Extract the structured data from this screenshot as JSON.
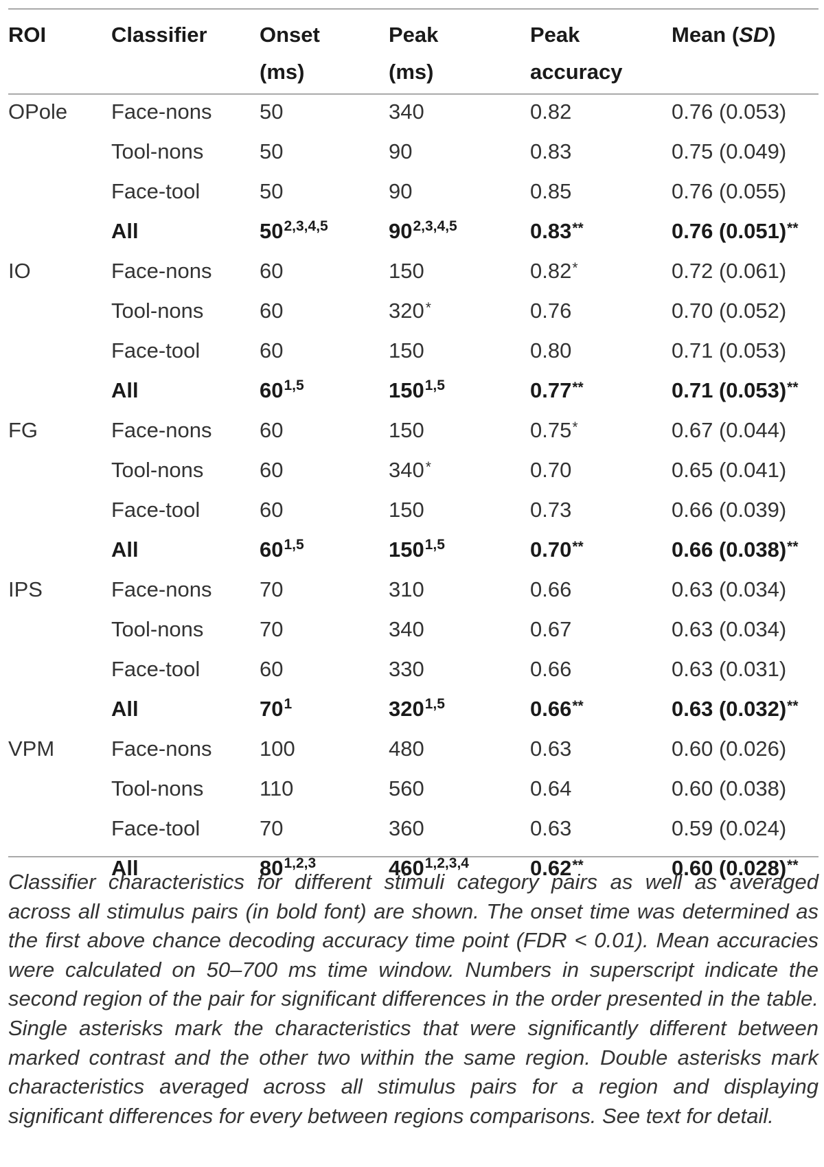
{
  "table": {
    "headers": [
      {
        "line1": "ROI",
        "line2": ""
      },
      {
        "line1": "Classifier",
        "line2": ""
      },
      {
        "line1": "Onset",
        "line2": "(ms)"
      },
      {
        "line1": "Peak",
        "line2": "(ms)"
      },
      {
        "line1": "Peak",
        "line2": "accuracy"
      },
      {
        "line1": "Mean (",
        "italic": "SD",
        "close": ")"
      }
    ],
    "rows": [
      {
        "roi": "OPole",
        "classifier": "Face-nons",
        "onset": "50",
        "onset_sup": "",
        "peak": "340",
        "peak_sup": "",
        "peak_mark": "",
        "acc": "0.82",
        "acc_mark": "",
        "mean": "0.76 (0.053)",
        "mean_mark": "",
        "all": false
      },
      {
        "roi": "",
        "classifier": "Tool-nons",
        "onset": "50",
        "onset_sup": "",
        "peak": "90",
        "peak_sup": "",
        "peak_mark": "",
        "acc": "0.83",
        "acc_mark": "",
        "mean": "0.75 (0.049)",
        "mean_mark": "",
        "all": false
      },
      {
        "roi": "",
        "classifier": "Face-tool",
        "onset": "50",
        "onset_sup": "",
        "peak": "90",
        "peak_sup": "",
        "peak_mark": "",
        "acc": "0.85",
        "acc_mark": "",
        "mean": "0.76 (0.055)",
        "mean_mark": "",
        "all": false
      },
      {
        "roi": "",
        "classifier": "All",
        "onset": "50",
        "onset_sup": "2,3,4,5",
        "peak": "90",
        "peak_sup": "2,3,4,5",
        "peak_mark": "",
        "acc": "0.83",
        "acc_mark": "**",
        "mean": "0.76 (0.051)",
        "mean_mark": "**",
        "all": true
      },
      {
        "roi": "IO",
        "classifier": "Face-nons",
        "onset": "60",
        "onset_sup": "",
        "peak": "150",
        "peak_sup": "",
        "peak_mark": "",
        "acc": "0.82",
        "acc_mark": "*",
        "mean": "0.72 (0.061)",
        "mean_mark": "",
        "all": false
      },
      {
        "roi": "",
        "classifier": "Tool-nons",
        "onset": "60",
        "onset_sup": "",
        "peak": "320",
        "peak_sup": "",
        "peak_mark": "*",
        "acc": "0.76",
        "acc_mark": "",
        "mean": "0.70 (0.052)",
        "mean_mark": "",
        "all": false
      },
      {
        "roi": "",
        "classifier": "Face-tool",
        "onset": "60",
        "onset_sup": "",
        "peak": "150",
        "peak_sup": "",
        "peak_mark": "",
        "acc": "0.80",
        "acc_mark": "",
        "mean": "0.71 (0.053)",
        "mean_mark": "",
        "all": false
      },
      {
        "roi": "",
        "classifier": "All",
        "onset": "60",
        "onset_sup": "1,5",
        "peak": "150",
        "peak_sup": "1,5",
        "peak_mark": "",
        "acc": "0.77",
        "acc_mark": "**",
        "mean": "0.71 (0.053)",
        "mean_mark": "**",
        "all": true
      },
      {
        "roi": "FG",
        "classifier": "Face-nons",
        "onset": "60",
        "onset_sup": "",
        "peak": "150",
        "peak_sup": "",
        "peak_mark": "",
        "acc": "0.75",
        "acc_mark": "*",
        "mean": "0.67 (0.044)",
        "mean_mark": "",
        "all": false
      },
      {
        "roi": "",
        "classifier": "Tool-nons",
        "onset": "60",
        "onset_sup": "",
        "peak": "340",
        "peak_sup": "",
        "peak_mark": "*",
        "acc": "0.70",
        "acc_mark": "",
        "mean": "0.65 (0.041)",
        "mean_mark": "",
        "all": false
      },
      {
        "roi": "",
        "classifier": "Face-tool",
        "onset": "60",
        "onset_sup": "",
        "peak": "150",
        "peak_sup": "",
        "peak_mark": "",
        "acc": "0.73",
        "acc_mark": "",
        "mean": "0.66 (0.039)",
        "mean_mark": "",
        "all": false
      },
      {
        "roi": "",
        "classifier": "All",
        "onset": "60",
        "onset_sup": "1,5",
        "peak": "150",
        "peak_sup": "1,5",
        "peak_mark": "",
        "acc": "0.70",
        "acc_mark": "**",
        "mean": "0.66 (0.038)",
        "mean_mark": "**",
        "all": true
      },
      {
        "roi": "IPS",
        "classifier": "Face-nons",
        "onset": "70",
        "onset_sup": "",
        "peak": "310",
        "peak_sup": "",
        "peak_mark": "",
        "acc": "0.66",
        "acc_mark": "",
        "mean": "0.63 (0.034)",
        "mean_mark": "",
        "all": false
      },
      {
        "roi": "",
        "classifier": "Tool-nons",
        "onset": "70",
        "onset_sup": "",
        "peak": "340",
        "peak_sup": "",
        "peak_mark": "",
        "acc": "0.67",
        "acc_mark": "",
        "mean": "0.63 (0.034)",
        "mean_mark": "",
        "all": false
      },
      {
        "roi": "",
        "classifier": "Face-tool",
        "onset": "60",
        "onset_sup": "",
        "peak": "330",
        "peak_sup": "",
        "peak_mark": "",
        "acc": "0.66",
        "acc_mark": "",
        "mean": "0.63 (0.031)",
        "mean_mark": "",
        "all": false
      },
      {
        "roi": "",
        "classifier": "All",
        "onset": "70",
        "onset_sup": "1",
        "peak": "320",
        "peak_sup": "1,5",
        "peak_mark": "",
        "acc": "0.66",
        "acc_mark": "**",
        "mean": "0.63 (0.032)",
        "mean_mark": "**",
        "all": true
      },
      {
        "roi": "VPM",
        "classifier": "Face-nons",
        "onset": "100",
        "onset_sup": "",
        "peak": "480",
        "peak_sup": "",
        "peak_mark": "",
        "acc": "0.63",
        "acc_mark": "",
        "mean": "0.60 (0.026)",
        "mean_mark": "",
        "all": false
      },
      {
        "roi": "",
        "classifier": "Tool-nons",
        "onset": "110",
        "onset_sup": "",
        "peak": "560",
        "peak_sup": "",
        "peak_mark": "",
        "acc": "0.64",
        "acc_mark": "",
        "mean": "0.60 (0.038)",
        "mean_mark": "",
        "all": false
      },
      {
        "roi": "",
        "classifier": "Face-tool",
        "onset": "70",
        "onset_sup": "",
        "peak": "360",
        "peak_sup": "",
        "peak_mark": "",
        "acc": "0.63",
        "acc_mark": "",
        "mean": "0.59 (0.024)",
        "mean_mark": "",
        "all": false
      },
      {
        "roi": "",
        "classifier": "All",
        "onset": "80",
        "onset_sup": "1,2,3",
        "peak": "460",
        "peak_sup": "1,2,3,4",
        "peak_mark": "",
        "acc": "0.62",
        "acc_mark": "**",
        "mean": "0.60 (0.028)",
        "mean_mark": "**",
        "all": true
      }
    ]
  },
  "caption": "Classifier characteristics for different stimuli category pairs as well as averaged across all stimulus pairs (in bold font) are shown. The onset time was determined as the first above chance decoding accuracy time point (FDR < 0.01). Mean accuracies were calculated on 50–700 ms time window. Numbers in superscript indicate the second region of the pair for significant differences in the order presented in the table. Single asterisks mark the characteristics that were significantly different between marked contrast and the other two within the same region. Double asterisks mark characteristics averaged across all stimulus pairs for a region and displaying significant differences for every between regions comparisons. See text for detail."
}
